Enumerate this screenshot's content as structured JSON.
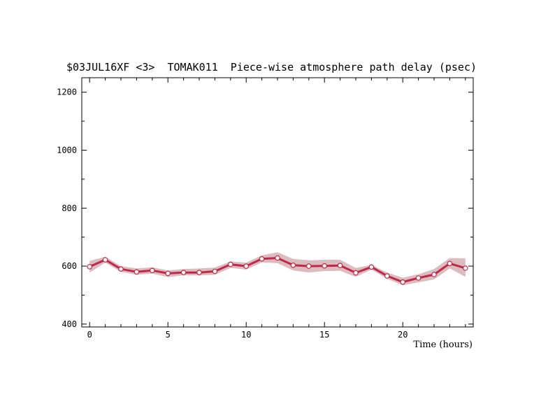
{
  "chart_data": {
    "type": "line",
    "title": "$03JUL16XF <3>  TOMAK011  Piece-wise atmosphere path delay (psec)",
    "xlabel": "Time (hours)",
    "ylabel": "",
    "xlim": [
      -0.5,
      24.5
    ],
    "ylim": [
      390,
      1250
    ],
    "x_ticks": [
      0,
      5,
      10,
      15,
      20
    ],
    "x_minor_step": 1,
    "y_ticks": [
      400,
      600,
      800,
      1000,
      1200
    ],
    "y_minor_step": 100,
    "grid": false,
    "colors": {
      "line": "#c0284a",
      "band": "#dbbcbf",
      "marker_fill": "#ffffff"
    },
    "series": [
      {
        "x": [
          0,
          1,
          2,
          3,
          4,
          5,
          6,
          7,
          8,
          9,
          10,
          11,
          12,
          13,
          14,
          15,
          16,
          17,
          18,
          19,
          20,
          21,
          22,
          23,
          24
        ],
        "values": [
          598,
          622,
          590,
          580,
          585,
          575,
          578,
          578,
          582,
          606,
          600,
          625,
          628,
          603,
          600,
          601,
          602,
          577,
          597,
          566,
          545,
          559,
          571,
          609,
          593
        ],
        "upper": [
          618,
          632,
          600,
          592,
          596,
          585,
          590,
          592,
          595,
          616,
          612,
          637,
          648,
          625,
          620,
          622,
          622,
          594,
          604,
          578,
          560,
          572,
          590,
          628,
          627
        ],
        "lower": [
          578,
          612,
          580,
          570,
          574,
          562,
          568,
          568,
          570,
          594,
          588,
          613,
          610,
          585,
          578,
          583,
          584,
          563,
          588,
          556,
          534,
          544,
          554,
          592,
          563
        ]
      }
    ]
  }
}
